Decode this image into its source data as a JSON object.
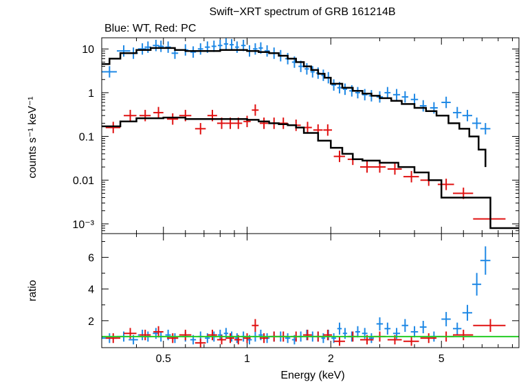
{
  "chart_data": [
    {
      "type": "scatter",
      "title": "Swift−XRT spectrum of GRB 161214B",
      "subtitle": "Blue: WT, Red: PC",
      "xlabel": "Energy (keV)",
      "ylabel": "counts s⁻¹ keV⁻¹",
      "xscale": "log",
      "yscale": "log",
      "xlim": [
        0.3,
        9.5
      ],
      "ylim": [
        0.0006,
        18
      ],
      "xticks": [
        "0.5",
        "1",
        "2",
        "5"
      ],
      "yticks": [
        "10",
        "1",
        "0.1",
        "0.01",
        "10⁻³"
      ],
      "colors": {
        "wt": "#1e88e5",
        "pc": "#e01010",
        "model": "#000000",
        "unity": "#22cc22"
      },
      "series": [
        {
          "key": "wt",
          "x": [
            0.32,
            0.36,
            0.39,
            0.42,
            0.44,
            0.47,
            0.49,
            0.52,
            0.55,
            0.6,
            0.64,
            0.68,
            0.72,
            0.76,
            0.8,
            0.84,
            0.88,
            0.92,
            0.97,
            1.02,
            1.07,
            1.12,
            1.18,
            1.25,
            1.32,
            1.4,
            1.48,
            1.56,
            1.64,
            1.72,
            1.8,
            1.88,
            1.96,
            2.05,
            2.15,
            2.25,
            2.38,
            2.5,
            2.65,
            2.8,
            3.0,
            3.2,
            3.45,
            3.7,
            4.0,
            4.3,
            4.7,
            5.2,
            5.7,
            6.2,
            6.7,
            7.2
          ],
          "y": [
            3.0,
            9.0,
            8.0,
            10.0,
            11.0,
            12.0,
            11.5,
            11.0,
            8.0,
            9.5,
            8.5,
            10.0,
            11.0,
            11.5,
            12.0,
            13.0,
            12.5,
            11.0,
            12.0,
            9.0,
            10.0,
            10.5,
            9.0,
            8.0,
            7.0,
            6.0,
            5.0,
            4.0,
            3.5,
            3.0,
            2.8,
            2.5,
            2.2,
            1.5,
            1.3,
            1.2,
            1.1,
            1.0,
            0.9,
            0.85,
            0.8,
            1.0,
            0.9,
            0.8,
            0.7,
            0.5,
            0.45,
            0.6,
            0.35,
            0.3,
            0.2,
            0.15
          ],
          "xerr": [
            0.02,
            0.02,
            0.015,
            0.015,
            0.012,
            0.012,
            0.012,
            0.012,
            0.015,
            0.015,
            0.015,
            0.015,
            0.015,
            0.015,
            0.015,
            0.015,
            0.015,
            0.015,
            0.018,
            0.02,
            0.02,
            0.02,
            0.025,
            0.03,
            0.03,
            0.03,
            0.03,
            0.03,
            0.03,
            0.03,
            0.03,
            0.03,
            0.03,
            0.04,
            0.04,
            0.04,
            0.05,
            0.05,
            0.06,
            0.06,
            0.08,
            0.08,
            0.1,
            0.1,
            0.12,
            0.12,
            0.15,
            0.2,
            0.2,
            0.25,
            0.25,
            0.3
          ],
          "ratio": [
            0.9,
            1.0,
            0.8,
            1.1,
            1.0,
            1.2,
            1.0,
            1.1,
            0.9,
            1.0,
            0.8,
            1.0,
            0.9,
            1.0,
            1.1,
            1.2,
            1.0,
            0.9,
            1.0,
            0.8,
            1.0,
            1.1,
            0.9,
            1.0,
            1.0,
            0.9,
            0.8,
            1.0,
            1.1,
            1.0,
            1.0,
            0.9,
            1.1,
            0.9,
            1.5,
            1.2,
            1.0,
            1.3,
            1.2,
            0.9,
            1.8,
            1.5,
            1.2,
            1.7,
            1.3,
            1.6,
            1.0,
            2.1,
            1.5,
            2.5,
            4.3,
            5.8
          ]
        },
        {
          "key": "pc",
          "x": [
            0.33,
            0.38,
            0.43,
            0.48,
            0.54,
            0.6,
            0.68,
            0.75,
            0.81,
            0.87,
            0.93,
            1.0,
            1.07,
            1.15,
            1.25,
            1.35,
            1.5,
            1.65,
            1.8,
            1.95,
            2.15,
            2.4,
            2.7,
            3.0,
            3.4,
            3.9,
            4.5,
            5.2,
            6.0,
            7.5
          ],
          "y": [
            0.16,
            0.3,
            0.3,
            0.35,
            0.25,
            0.3,
            0.15,
            0.3,
            0.2,
            0.2,
            0.2,
            0.22,
            0.4,
            0.2,
            0.2,
            0.2,
            0.18,
            0.16,
            0.14,
            0.14,
            0.035,
            0.03,
            0.02,
            0.02,
            0.018,
            0.012,
            0.01,
            0.008,
            0.005,
            0.0013
          ],
          "xerr": [
            0.02,
            0.02,
            0.02,
            0.02,
            0.025,
            0.03,
            0.03,
            0.03,
            0.03,
            0.03,
            0.03,
            0.03,
            0.03,
            0.04,
            0.05,
            0.05,
            0.06,
            0.06,
            0.07,
            0.07,
            0.1,
            0.1,
            0.15,
            0.15,
            0.2,
            0.25,
            0.3,
            0.35,
            0.5,
            1.0
          ],
          "ratio": [
            0.9,
            1.2,
            1.1,
            1.3,
            0.9,
            1.1,
            0.6,
            1.1,
            0.8,
            0.9,
            0.8,
            0.9,
            1.7,
            0.9,
            1.0,
            1.0,
            1.0,
            1.1,
            1.0,
            1.1,
            0.7,
            1.0,
            0.8,
            1.0,
            0.8,
            0.7,
            0.9,
            1.0,
            1.1,
            1.7
          ]
        }
      ],
      "models": [
        {
          "key": "wt",
          "edges": [
            0.3,
            0.32,
            0.35,
            0.4,
            0.45,
            0.5,
            0.55,
            0.6,
            0.7,
            0.8,
            0.9,
            1.0,
            1.1,
            1.2,
            1.3,
            1.4,
            1.5,
            1.6,
            1.7,
            1.8,
            1.9,
            2.0,
            2.2,
            2.4,
            2.6,
            2.8,
            3.0,
            3.3,
            3.6,
            4.0,
            4.4,
            4.8,
            5.3,
            5.8,
            6.3,
            6.8,
            7.2
          ],
          "values": [
            4.5,
            6.0,
            8.0,
            9.5,
            10.5,
            10.5,
            9.5,
            9.0,
            9.0,
            9.5,
            9.5,
            9.0,
            8.5,
            8.0,
            7.0,
            6.0,
            5.0,
            4.0,
            3.3,
            2.7,
            2.2,
            1.6,
            1.3,
            1.1,
            0.95,
            0.85,
            0.75,
            0.65,
            0.55,
            0.45,
            0.38,
            0.3,
            0.2,
            0.15,
            0.1,
            0.05,
            0.02
          ]
        },
        {
          "key": "pc",
          "edges": [
            0.3,
            0.35,
            0.4,
            0.5,
            0.6,
            0.7,
            0.8,
            0.9,
            1.0,
            1.1,
            1.2,
            1.3,
            1.4,
            1.5,
            1.6,
            1.8,
            2.0,
            2.2,
            2.4,
            2.6,
            3.0,
            3.5,
            4.0,
            4.5,
            5.0,
            6.0,
            7.5,
            9.5
          ],
          "values": [
            0.17,
            0.22,
            0.26,
            0.27,
            0.25,
            0.25,
            0.25,
            0.25,
            0.24,
            0.22,
            0.2,
            0.19,
            0.18,
            0.16,
            0.12,
            0.08,
            0.055,
            0.04,
            0.03,
            0.028,
            0.025,
            0.02,
            0.015,
            0.01,
            0.004,
            0.004,
            0.0008
          ]
        }
      ],
      "ratio_panel": {
        "ylabel": "ratio",
        "ylim": [
          0.3,
          7.5
        ],
        "yticks": [
          "2",
          "4",
          "6"
        ],
        "unity": 1.0
      }
    }
  ]
}
